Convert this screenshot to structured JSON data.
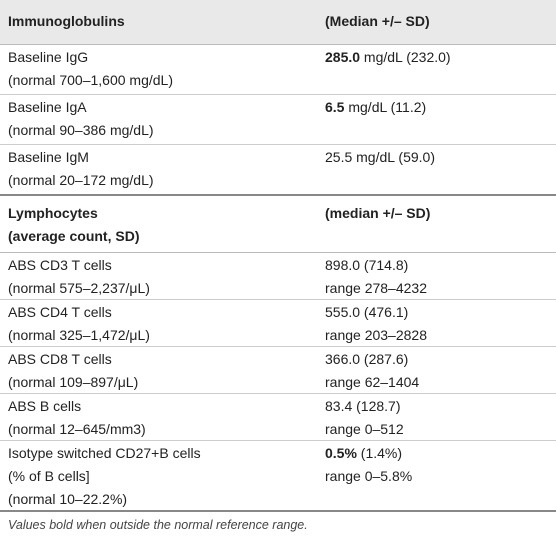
{
  "table": {
    "sections": [
      {
        "header": {
          "label": [
            "Immunoglobulins"
          ],
          "value": [
            "(Median +/– SD)"
          ]
        },
        "rows": [
          {
            "label": [
              "Baseline IgG",
              "(normal 700–1,600 mg/dL)"
            ],
            "value": [
              [
                {
                  "text": "285.0",
                  "bold": true
                },
                {
                  "text": " mg/dL (232.0)"
                }
              ]
            ]
          },
          {
            "label": [
              "Baseline IgA",
              "(normal 90–386 mg/dL)"
            ],
            "value": [
              [
                {
                  "text": "6.5",
                  "bold": true
                },
                {
                  "text": " mg/dL (11.2)"
                }
              ]
            ]
          },
          {
            "label": [
              "Baseline IgM",
              "(normal 20–172 mg/dL)"
            ],
            "value": [
              [
                {
                  "text": "25.5 mg/dL (59.0)"
                }
              ]
            ]
          }
        ]
      },
      {
        "header": {
          "label": [
            "Lymphocytes",
            "(average count, SD)"
          ],
          "value": [
            "(median +/– SD)"
          ]
        },
        "rows": [
          {
            "label": [
              "ABS CD3 T cells",
              "(normal 575–2,237/μL)"
            ],
            "value": [
              [
                {
                  "text": "898.0 (714.8)"
                }
              ],
              [
                {
                  "text": "range 278–4232"
                }
              ]
            ]
          },
          {
            "label": [
              "ABS CD4 T cells",
              "(normal 325–1,472/μL)"
            ],
            "value": [
              [
                {
                  "text": "555.0 (476.1)"
                }
              ],
              [
                {
                  "text": "range 203–2828"
                }
              ]
            ]
          },
          {
            "label": [
              "ABS CD8 T cells",
              "(normal 109–897/μL)"
            ],
            "value": [
              [
                {
                  "text": "366.0 (287.6)"
                }
              ],
              [
                {
                  "text": "range 62–1404"
                }
              ]
            ]
          },
          {
            "label": [
              "ABS B cells",
              "(normal 12–645/mm3)"
            ],
            "value": [
              [
                {
                  "text": "83.4 (128.7)"
                }
              ],
              [
                {
                  "text": "range 0–512"
                }
              ]
            ]
          },
          {
            "label": [
              "Isotype switched CD27+B cells",
              "(% of B cells]",
              "(normal 10–22.2%)"
            ],
            "value": [
              [
                {
                  "text": "0.5%",
                  "bold": true
                },
                {
                  "text": " (1.4%)"
                }
              ],
              [
                {
                  "text": "range 0–5.8%"
                }
              ]
            ]
          }
        ]
      }
    ]
  },
  "footnote": "Values bold when outside the normal reference range."
}
